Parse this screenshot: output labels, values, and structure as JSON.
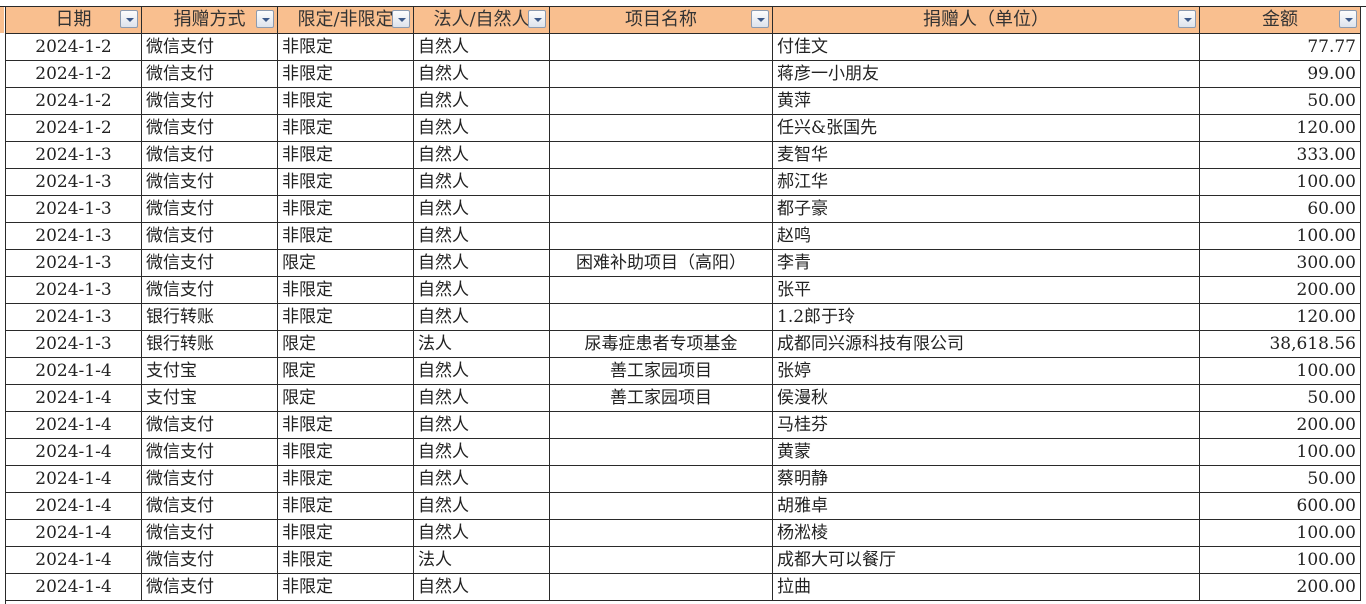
{
  "colors": {
    "header_bg": "#f9bf8f",
    "grid": "#2a2a2a"
  },
  "columns": [
    {
      "label": "日期",
      "align": "c",
      "width": 136
    },
    {
      "label": "捐赠方式",
      "align": "l",
      "width": 136
    },
    {
      "label": "限定/非限定",
      "align": "l",
      "width": 136
    },
    {
      "label": "法人/自然人",
      "align": "l",
      "width": 136
    },
    {
      "label": "项目名称",
      "align": "c",
      "width": 223
    },
    {
      "label": "捐赠人（单位）",
      "align": "l",
      "width": 427
    },
    {
      "label": "金额",
      "align": "r",
      "width": 161
    }
  ],
  "rows": [
    [
      "2024-1-2",
      "微信支付",
      "非限定",
      "自然人",
      "",
      "付佳文",
      "77.77"
    ],
    [
      "2024-1-2",
      "微信支付",
      "非限定",
      "自然人",
      "",
      "蒋彦一小朋友",
      "99.00"
    ],
    [
      "2024-1-2",
      "微信支付",
      "非限定",
      "自然人",
      "",
      "黄萍",
      "50.00"
    ],
    [
      "2024-1-2",
      "微信支付",
      "非限定",
      "自然人",
      "",
      "任兴&张国先",
      "120.00"
    ],
    [
      "2024-1-3",
      "微信支付",
      "非限定",
      "自然人",
      "",
      "麦智华",
      "333.00"
    ],
    [
      "2024-1-3",
      "微信支付",
      "非限定",
      "自然人",
      "",
      "郝江华",
      "100.00"
    ],
    [
      "2024-1-3",
      "微信支付",
      "非限定",
      "自然人",
      "",
      "都子豪",
      "60.00"
    ],
    [
      "2024-1-3",
      "微信支付",
      "非限定",
      "自然人",
      "",
      "赵鸣",
      "100.00"
    ],
    [
      "2024-1-3",
      "微信支付",
      "限定",
      "自然人",
      "困难补助项目（高阳）",
      "李青",
      "300.00"
    ],
    [
      "2024-1-3",
      "微信支付",
      "非限定",
      "自然人",
      "",
      "张平",
      "200.00"
    ],
    [
      "2024-1-3",
      "银行转账",
      "非限定",
      "自然人",
      "",
      "1.2郎于玲",
      "120.00"
    ],
    [
      "2024-1-3",
      "银行转账",
      "限定",
      "法人",
      "尿毒症患者专项基金",
      "成都同兴源科技有限公司",
      "38,618.56"
    ],
    [
      "2024-1-4",
      "支付宝",
      "限定",
      "自然人",
      "善工家园项目",
      "张婷",
      "100.00"
    ],
    [
      "2024-1-4",
      "支付宝",
      "限定",
      "自然人",
      "善工家园项目",
      "侯漫秋",
      "50.00"
    ],
    [
      "2024-1-4",
      "微信支付",
      "非限定",
      "自然人",
      "",
      "马桂芬",
      "200.00"
    ],
    [
      "2024-1-4",
      "微信支付",
      "非限定",
      "自然人",
      "",
      "黄蒙",
      "100.00"
    ],
    [
      "2024-1-4",
      "微信支付",
      "非限定",
      "自然人",
      "",
      "蔡明静",
      "50.00"
    ],
    [
      "2024-1-4",
      "微信支付",
      "非限定",
      "自然人",
      "",
      "胡雅卓",
      "600.00"
    ],
    [
      "2024-1-4",
      "微信支付",
      "非限定",
      "自然人",
      "",
      "杨淞棱",
      "100.00"
    ],
    [
      "2024-1-4",
      "微信支付",
      "非限定",
      "法人",
      "",
      "成都大可以餐厅",
      "100.00"
    ],
    [
      "2024-1-4",
      "微信支付",
      "非限定",
      "自然人",
      "",
      "拉曲",
      "200.00"
    ]
  ]
}
